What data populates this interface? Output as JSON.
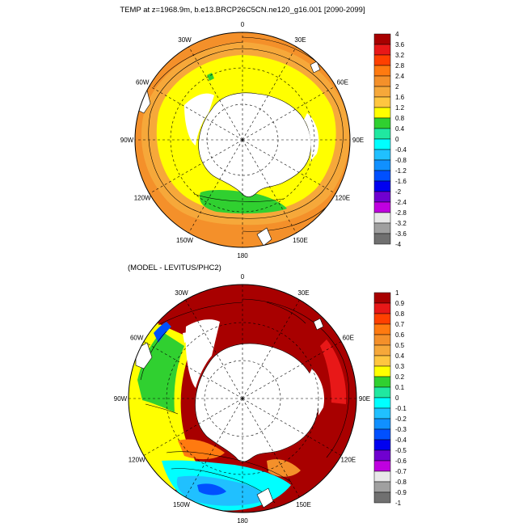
{
  "top_panel": {
    "title": "TEMP at z=1968.9m, b.e13.BRCP26C5CN.ne120_g16.001 [2090-2099]",
    "longitude_labels": [
      "0",
      "30E",
      "60E",
      "90E",
      "120E",
      "150E",
      "180",
      "150W",
      "120W",
      "90W",
      "60W",
      "30W"
    ],
    "colorbar": {
      "labels": [
        "4",
        "3.6",
        "3.2",
        "2.8",
        "2.4",
        "2",
        "1.6",
        "1.2",
        "0.8",
        "0.4",
        "0",
        "-0.4",
        "-0.8",
        "-1.2",
        "-1.6",
        "-2",
        "-2.4",
        "-2.8",
        "-3.2",
        "-3.6",
        "-4"
      ],
      "colors": [
        "#a80000",
        "#e81818",
        "#ff4000",
        "#ff7a10",
        "#f4902a",
        "#f6a83a",
        "#ffc640",
        "#ffff00",
        "#30d030",
        "#20e8a0",
        "#00ffff",
        "#20c0ff",
        "#1090ff",
        "#0050ff",
        "#0000f0",
        "#7000d0",
        "#c000e0",
        "#e8e8e8",
        "#a0a0a0",
        "#707070"
      ]
    }
  },
  "bottom_panel": {
    "title": "(MODEL - LEVITUS/PHC2)",
    "longitude_labels": [
      "0",
      "30E",
      "60E",
      "90E",
      "120E",
      "150E",
      "180",
      "150W",
      "120W",
      "90W",
      "60W",
      "30W"
    ],
    "colorbar": {
      "labels": [
        "1",
        "0.9",
        "0.8",
        "0.7",
        "0.6",
        "0.5",
        "0.4",
        "0.3",
        "0.2",
        "0.1",
        "0",
        "-0.1",
        "-0.2",
        "-0.3",
        "-0.4",
        "-0.5",
        "-0.6",
        "-0.7",
        "-0.8",
        "-0.9",
        "-1"
      ],
      "colors": [
        "#a80000",
        "#e81818",
        "#ff4000",
        "#ff7a10",
        "#f4902a",
        "#f6a83a",
        "#ffc640",
        "#ffff00",
        "#30d030",
        "#20e8a0",
        "#00ffff",
        "#20c0ff",
        "#1090ff",
        "#0050ff",
        "#0000f0",
        "#7000d0",
        "#c000e0",
        "#e8e8e8",
        "#a0a0a0",
        "#707070"
      ]
    }
  },
  "colors": {
    "land": "#ffffff",
    "coastline": "#000000",
    "grid": "#000000"
  }
}
